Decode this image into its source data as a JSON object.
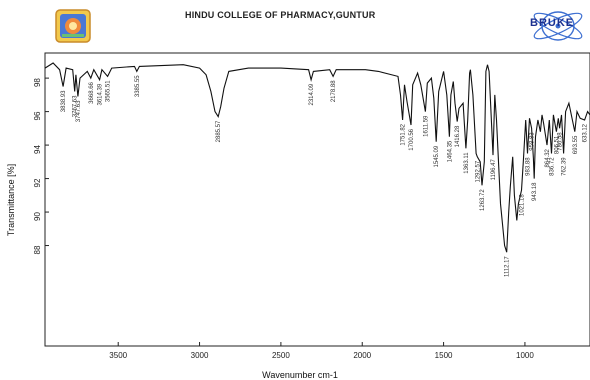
{
  "header": {
    "title": "HINDU COLLEGE OF PHARMACY,GUNTUR",
    "brand": "BRUKE"
  },
  "chart_data": {
    "type": "line",
    "title": "",
    "xlabel": "Wavenumber cm-1",
    "ylabel": "Transmittance [%]",
    "xlim": [
      3950,
      600
    ],
    "ylim": [
      82,
      99.5
    ],
    "x_ticks": [
      3500,
      3000,
      2500,
      2000,
      1500,
      1000
    ],
    "y_ticks": [
      88,
      90,
      92,
      94,
      96,
      98
    ],
    "grid": false,
    "series": [
      {
        "values": [
          [
            3950,
            98.6
          ],
          [
            3900,
            98.9
          ],
          [
            3860,
            98.5
          ],
          [
            3838.93,
            97.5
          ],
          [
            3820,
            98.6
          ],
          [
            3780,
            98.5
          ],
          [
            3767.63,
            97.2
          ],
          [
            3760,
            98.2
          ],
          [
            3747.63,
            96.9
          ],
          [
            3735,
            98.0
          ],
          [
            3690,
            98.4
          ],
          [
            3668.66,
            98.0
          ],
          [
            3650,
            98.5
          ],
          [
            3614.39,
            97.9
          ],
          [
            3600,
            98.5
          ],
          [
            3565.51,
            98.1
          ],
          [
            3540,
            98.6
          ],
          [
            3400,
            98.7
          ],
          [
            3385.55,
            98.4
          ],
          [
            3370,
            98.7
          ],
          [
            3100,
            98.8
          ],
          [
            3000,
            98.6
          ],
          [
            2960,
            98.2
          ],
          [
            2930,
            97.2
          ],
          [
            2905,
            96.0
          ],
          [
            2885.57,
            95.7
          ],
          [
            2870,
            96.3
          ],
          [
            2850,
            97.4
          ],
          [
            2820,
            98.4
          ],
          [
            2700,
            98.6
          ],
          [
            2500,
            98.6
          ],
          [
            2330,
            98.5
          ],
          [
            2314.09,
            97.9
          ],
          [
            2300,
            98.4
          ],
          [
            2200,
            98.5
          ],
          [
            2178.88,
            98.1
          ],
          [
            2160,
            98.5
          ],
          [
            1980,
            98.5
          ],
          [
            1900,
            98.4
          ],
          [
            1780,
            98.1
          ],
          [
            1765,
            97.0
          ],
          [
            1751.82,
            95.5
          ],
          [
            1740,
            97.6
          ],
          [
            1725,
            96.6
          ],
          [
            1700.56,
            95.2
          ],
          [
            1690,
            97.6
          ],
          [
            1660,
            98.3
          ],
          [
            1640,
            97.6
          ],
          [
            1611.59,
            96.0
          ],
          [
            1600,
            97.7
          ],
          [
            1575,
            98.0
          ],
          [
            1560,
            96.8
          ],
          [
            1545.09,
            94.2
          ],
          [
            1530,
            97.2
          ],
          [
            1500,
            98.4
          ],
          [
            1480,
            97.0
          ],
          [
            1464.35,
            94.5
          ],
          [
            1455,
            97.0
          ],
          [
            1440,
            97.8
          ],
          [
            1430,
            96.5
          ],
          [
            1416.28,
            95.4
          ],
          [
            1405,
            96.2
          ],
          [
            1380,
            96.5
          ],
          [
            1363.11,
            93.8
          ],
          [
            1352,
            95.5
          ],
          [
            1340,
            98.3
          ],
          [
            1335,
            98.5
          ],
          [
            1320,
            97.0
          ],
          [
            1300,
            93.5
          ],
          [
            1292.57,
            93.3
          ],
          [
            1275,
            93.0
          ],
          [
            1263.72,
            91.6
          ],
          [
            1250,
            93.0
          ],
          [
            1240,
            98.4
          ],
          [
            1230,
            98.8
          ],
          [
            1220,
            98.4
          ],
          [
            1196.47,
            93.4
          ],
          [
            1185,
            97.0
          ],
          [
            1175,
            95.5
          ],
          [
            1150,
            90.5
          ],
          [
            1125,
            88.0
          ],
          [
            1112.17,
            87.6
          ],
          [
            1100,
            90.0
          ],
          [
            1090,
            91.5
          ],
          [
            1075,
            93.3
          ],
          [
            1065,
            91.0
          ],
          [
            1050,
            89.5
          ],
          [
            1040,
            90.5
          ],
          [
            1021.18,
            91.3
          ],
          [
            1010,
            93.0
          ],
          [
            995,
            95.5
          ],
          [
            983.88,
            93.5
          ],
          [
            972,
            95.6
          ],
          [
            958.83,
            95.0
          ],
          [
            948,
            93.2
          ],
          [
            943.18,
            92.0
          ],
          [
            935,
            94.5
          ],
          [
            920,
            95.5
          ],
          [
            905,
            94.8
          ],
          [
            895,
            95.8
          ],
          [
            885,
            95.3
          ],
          [
            864.32,
            94.0
          ],
          [
            850,
            95.5
          ],
          [
            836.72,
            93.5
          ],
          [
            825,
            95.8
          ],
          [
            806.51,
            94.8
          ],
          [
            795,
            95.6
          ],
          [
            786.58,
            95.0
          ],
          [
            775,
            95.8
          ],
          [
            762.39,
            93.5
          ],
          [
            750,
            96.0
          ],
          [
            730,
            96.5
          ],
          [
            693.55,
            94.8
          ],
          [
            680,
            96.0
          ],
          [
            660,
            95.6
          ],
          [
            633.12,
            95.5
          ],
          [
            615,
            96.0
          ],
          [
            600,
            95.8
          ]
        ]
      }
    ],
    "peak_labels": [
      "3838.93",
      "3767.63",
      "3747.63",
      "3668.66",
      "3614.39",
      "3565.51",
      "3385.55",
      "2885.57",
      "2314.09",
      "2178.88",
      "1751.82",
      "1700.56",
      "1611.59",
      "1545.09",
      "1464.35",
      "1416.28",
      "1363.11",
      "1292.57",
      "1263.72",
      "1196.47",
      "1112.17",
      "1021.18",
      "983.88",
      "958.83",
      "943.18",
      "864.32",
      "836.72",
      "806.51",
      "786.58",
      "762.39",
      "693.55",
      "633.12"
    ]
  }
}
